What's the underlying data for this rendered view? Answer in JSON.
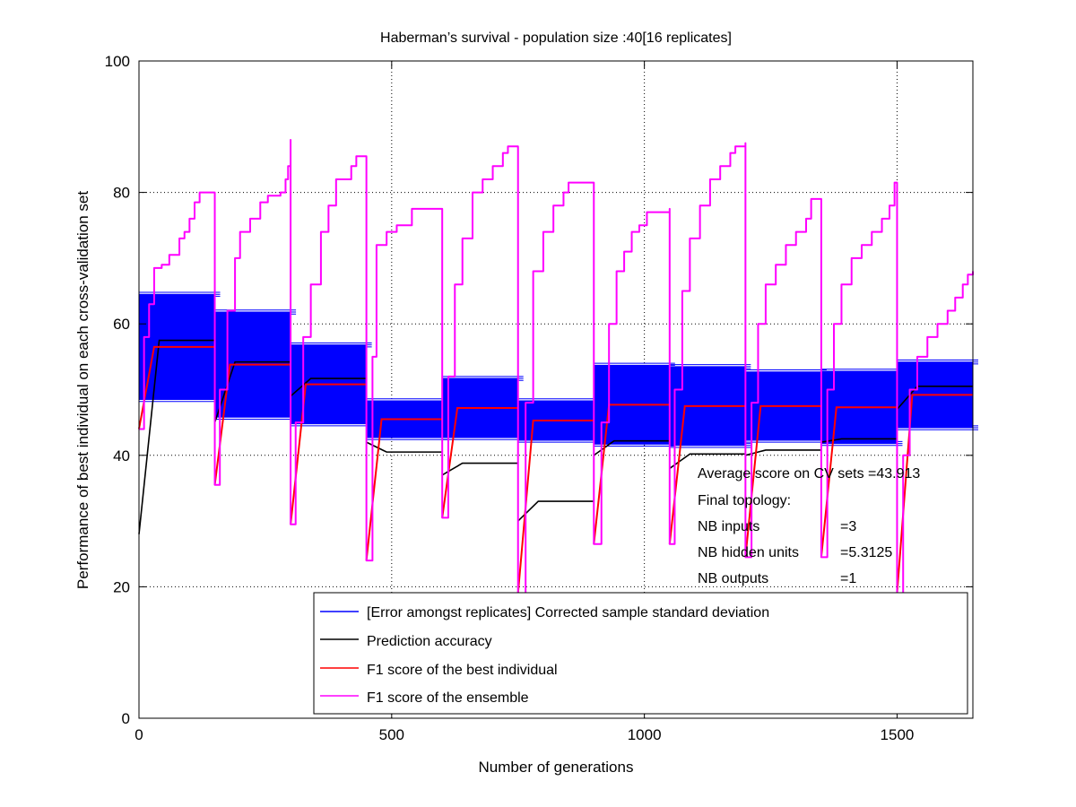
{
  "chart_data": {
    "type": "line",
    "title": "Haberman’s survival - population size :40[16 replicates]",
    "xlabel": "Number of generations",
    "ylabel": "Performance of best individual on each cross-validation set",
    "xlim": [
      0,
      1650
    ],
    "ylim": [
      0,
      100
    ],
    "xticks": [
      0,
      500,
      1000,
      1500
    ],
    "yticks": [
      0,
      20,
      40,
      60,
      80,
      100
    ],
    "grid": true,
    "legend_position": "bottom-right",
    "colors": {
      "std": "#0000ff",
      "accuracy": "#000000",
      "f1_best": "#ff0000",
      "f1_ensemble": "#ff00ff"
    },
    "annotations": [
      "Average score on CV sets =43.913",
      "Final topology:",
      "NB inputs",
      "=3",
      "NB hidden units",
      "=5.3125",
      "NB outputs",
      "=1"
    ],
    "segments": [
      {
        "start": 0,
        "end": 150,
        "best_f1": 56.5,
        "std": 8.0,
        "accuracy": 57.5,
        "accuracy_start": 28,
        "ensemble": [
          [
            0,
            44
          ],
          [
            10,
            58
          ],
          [
            20,
            63
          ],
          [
            30,
            68.5
          ],
          [
            45,
            69
          ],
          [
            60,
            70.5
          ],
          [
            80,
            73
          ],
          [
            90,
            74
          ],
          [
            100,
            76
          ],
          [
            110,
            78.5
          ],
          [
            120,
            80
          ],
          [
            150,
            80
          ]
        ]
      },
      {
        "start": 150,
        "end": 300,
        "best_f1": 53.8,
        "std": 8.0,
        "accuracy": 54.2,
        "accuracy_start": 45,
        "ensemble": [
          [
            150,
            35.5
          ],
          [
            160,
            50
          ],
          [
            175,
            62
          ],
          [
            190,
            70
          ],
          [
            200,
            74
          ],
          [
            220,
            76
          ],
          [
            240,
            78.5
          ],
          [
            255,
            79.5
          ],
          [
            280,
            80
          ],
          [
            290,
            82
          ],
          [
            295,
            84
          ],
          [
            300,
            88
          ]
        ]
      },
      {
        "start": 300,
        "end": 450,
        "best_f1": 50.8,
        "std": 6.0,
        "accuracy": 51.7,
        "accuracy_start": 49,
        "ensemble": [
          [
            300,
            29.5
          ],
          [
            310,
            45
          ],
          [
            325,
            58
          ],
          [
            340,
            66
          ],
          [
            360,
            74
          ],
          [
            375,
            78
          ],
          [
            390,
            82
          ],
          [
            420,
            84
          ],
          [
            430,
            85.5
          ],
          [
            450,
            85.5
          ]
        ]
      },
      {
        "start": 450,
        "end": 600,
        "best_f1": 45.5,
        "std": 2.8,
        "accuracy": 40.5,
        "accuracy_start": 42,
        "ensemble": [
          [
            450,
            24
          ],
          [
            462,
            55
          ],
          [
            470,
            72
          ],
          [
            490,
            74
          ],
          [
            510,
            75
          ],
          [
            540,
            77.5
          ],
          [
            600,
            77.5
          ]
        ]
      },
      {
        "start": 600,
        "end": 750,
        "best_f1": 47.2,
        "std": 4.5,
        "accuracy": 38.8,
        "accuracy_start": 37,
        "ensemble": [
          [
            600,
            30.5
          ],
          [
            612,
            52
          ],
          [
            625,
            66
          ],
          [
            640,
            73
          ],
          [
            660,
            80
          ],
          [
            680,
            82
          ],
          [
            700,
            84
          ],
          [
            720,
            86
          ],
          [
            730,
            87
          ],
          [
            750,
            87
          ]
        ]
      },
      {
        "start": 750,
        "end": 900,
        "best_f1": 45.3,
        "std": 3.0,
        "accuracy": 33.0,
        "accuracy_start": 30,
        "ensemble": [
          [
            750,
            19
          ],
          [
            765,
            48
          ],
          [
            780,
            68
          ],
          [
            800,
            74
          ],
          [
            820,
            78
          ],
          [
            840,
            80
          ],
          [
            850,
            81.5
          ],
          [
            900,
            81.5
          ]
        ]
      },
      {
        "start": 900,
        "end": 1050,
        "best_f1": 47.7,
        "std": 6.0,
        "accuracy": 42.2,
        "accuracy_start": 40,
        "ensemble": [
          [
            900,
            26.5
          ],
          [
            915,
            45
          ],
          [
            930,
            60
          ],
          [
            945,
            68
          ],
          [
            960,
            71
          ],
          [
            975,
            74
          ],
          [
            990,
            75
          ],
          [
            1005,
            77
          ],
          [
            1050,
            77.5
          ]
        ]
      },
      {
        "start": 1050,
        "end": 1200,
        "best_f1": 47.5,
        "std": 6.0,
        "accuracy": 40.2,
        "accuracy_start": 38,
        "ensemble": [
          [
            1050,
            26.5
          ],
          [
            1060,
            50
          ],
          [
            1075,
            65
          ],
          [
            1090,
            73
          ],
          [
            1110,
            78
          ],
          [
            1130,
            82
          ],
          [
            1150,
            84
          ],
          [
            1170,
            86
          ],
          [
            1180,
            87
          ],
          [
            1200,
            87.5
          ]
        ]
      },
      {
        "start": 1200,
        "end": 1350,
        "best_f1": 47.5,
        "std": 5.2,
        "accuracy": 40.8,
        "accuracy_start": 40,
        "ensemble": [
          [
            1200,
            24.5
          ],
          [
            1212,
            48
          ],
          [
            1225,
            60
          ],
          [
            1240,
            66
          ],
          [
            1260,
            69
          ],
          [
            1280,
            72
          ],
          [
            1300,
            74
          ],
          [
            1320,
            76
          ],
          [
            1330,
            79
          ],
          [
            1350,
            79
          ]
        ]
      },
      {
        "start": 1350,
        "end": 1500,
        "best_f1": 47.3,
        "std": 5.5,
        "accuracy": 42.5,
        "accuracy_start": 42,
        "ensemble": [
          [
            1350,
            24.5
          ],
          [
            1362,
            50
          ],
          [
            1375,
            60
          ],
          [
            1390,
            66
          ],
          [
            1410,
            70
          ],
          [
            1430,
            72
          ],
          [
            1450,
            74
          ],
          [
            1470,
            76
          ],
          [
            1485,
            78
          ],
          [
            1495,
            81.5
          ],
          [
            1500,
            81.5
          ]
        ]
      },
      {
        "start": 1500,
        "end": 1650,
        "best_f1": 49.2,
        "std": 5.0,
        "accuracy": 50.5,
        "accuracy_start": 47,
        "ensemble": [
          [
            1500,
            19
          ],
          [
            1512,
            40
          ],
          [
            1525,
            50
          ],
          [
            1540,
            55
          ],
          [
            1560,
            58
          ],
          [
            1580,
            60
          ],
          [
            1600,
            62
          ],
          [
            1615,
            64
          ],
          [
            1630,
            66
          ],
          [
            1640,
            67.5
          ],
          [
            1650,
            68
          ]
        ]
      }
    ],
    "series": [
      {
        "name": "[Error amongst replicates] Corrected sample standard deviation",
        "color": "#0000ff"
      },
      {
        "name": "Prediction accuracy",
        "color": "#000000"
      },
      {
        "name": "F1 score of the best individual",
        "color": "#ff0000"
      },
      {
        "name": "F1 score of the ensemble",
        "color": "#ff00ff"
      }
    ]
  }
}
